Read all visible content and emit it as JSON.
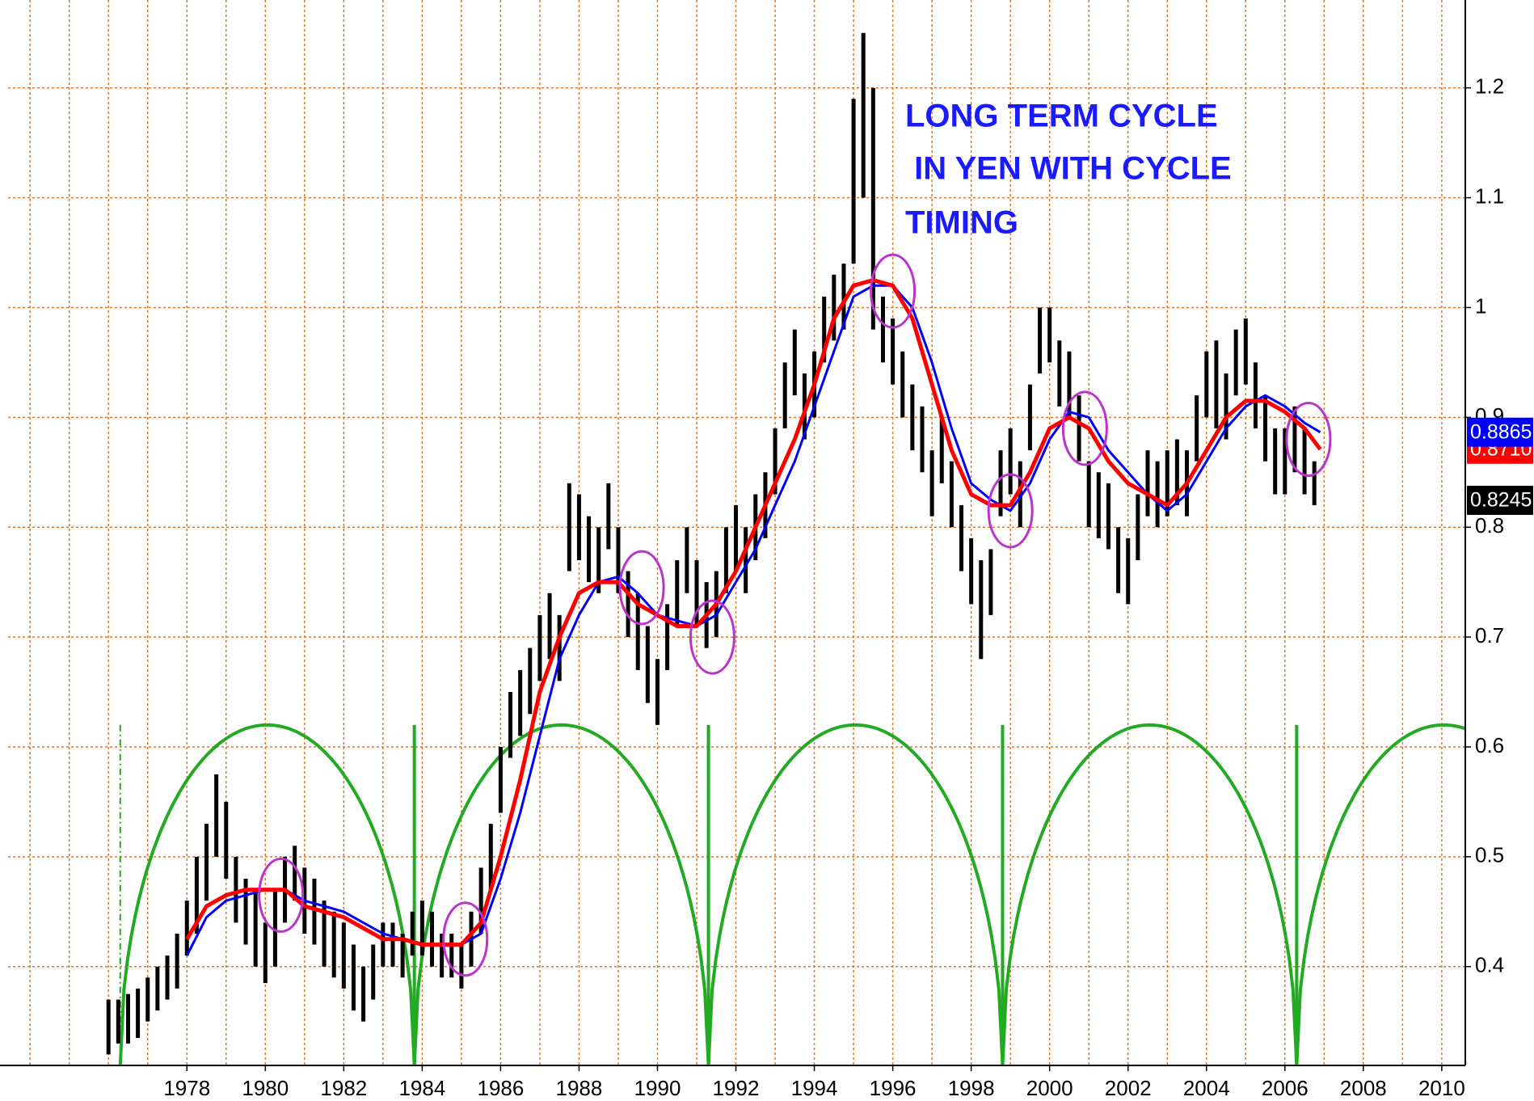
{
  "chart_data": {
    "type": "ohlc",
    "annotations": [
      "LONG TERM CYCLE",
      " IN YEN WITH CYCLE",
      "TIMING"
    ],
    "annotation_color": "#1a1aff",
    "xlim": [
      1973.44,
      2010.6
    ],
    "xticks": [
      1978,
      1980,
      1982,
      1984,
      1986,
      1988,
      1990,
      1992,
      1994,
      1996,
      1998,
      2000,
      2002,
      2004,
      2006,
      2008,
      2010
    ],
    "ylim": [
      0.31,
      1.28
    ],
    "yticks": [
      0.4,
      0.5,
      0.6,
      0.7,
      0.8,
      0.9,
      1,
      1.1,
      1.2
    ],
    "grid": true,
    "grid_color": "#d07a3a",
    "bars": {
      "color": "#000000",
      "x": [
        1976,
        1976.25,
        1976.5,
        1976.75,
        1977,
        1977.25,
        1977.5,
        1977.75,
        1978,
        1978.25,
        1978.5,
        1978.75,
        1979,
        1979.25,
        1979.5,
        1979.75,
        1980,
        1980.25,
        1980.5,
        1980.75,
        1981,
        1981.25,
        1981.5,
        1981.75,
        1982,
        1982.25,
        1982.5,
        1982.75,
        1983,
        1983.25,
        1983.5,
        1983.75,
        1984,
        1984.25,
        1984.5,
        1984.75,
        1985,
        1985.25,
        1985.5,
        1985.75,
        1986,
        1986.25,
        1986.5,
        1986.75,
        1987,
        1987.25,
        1987.5,
        1987.75,
        1988,
        1988.25,
        1988.5,
        1988.75,
        1989,
        1989.25,
        1989.5,
        1989.75,
        1990,
        1990.25,
        1990.5,
        1990.75,
        1991,
        1991.25,
        1991.5,
        1991.75,
        1992,
        1992.25,
        1992.5,
        1992.75,
        1993,
        1993.25,
        1993.5,
        1993.75,
        1994,
        1994.25,
        1994.5,
        1994.75,
        1995,
        1995.25,
        1995.5,
        1995.75,
        1996,
        1996.25,
        1996.5,
        1996.75,
        1997,
        1997.25,
        1997.5,
        1997.75,
        1998,
        1998.25,
        1998.5,
        1998.75,
        1999,
        1999.25,
        1999.5,
        1999.75,
        2000,
        2000.25,
        2000.5,
        2000.75,
        2001,
        2001.25,
        2001.5,
        2001.75,
        2002,
        2002.25,
        2002.5,
        2002.75,
        2003,
        2003.25,
        2003.5,
        2003.75,
        2004,
        2004.25,
        2004.5,
        2004.75,
        2005,
        2005.25,
        2005.5,
        2005.75,
        2006,
        2006.25,
        2006.5,
        2006.75
      ],
      "high": [
        0.37,
        0.37,
        0.375,
        0.38,
        0.39,
        0.4,
        0.41,
        0.43,
        0.46,
        0.5,
        0.53,
        0.575,
        0.55,
        0.5,
        0.48,
        0.47,
        0.44,
        0.47,
        0.5,
        0.51,
        0.49,
        0.48,
        0.46,
        0.45,
        0.44,
        0.42,
        0.4,
        0.42,
        0.44,
        0.44,
        0.43,
        0.45,
        0.46,
        0.45,
        0.43,
        0.43,
        0.42,
        0.45,
        0.49,
        0.53,
        0.6,
        0.65,
        0.67,
        0.69,
        0.72,
        0.74,
        0.72,
        0.84,
        0.83,
        0.81,
        0.8,
        0.84,
        0.8,
        0.76,
        0.74,
        0.71,
        0.68,
        0.73,
        0.77,
        0.8,
        0.77,
        0.75,
        0.76,
        0.8,
        0.82,
        0.8,
        0.83,
        0.85,
        0.89,
        0.95,
        0.98,
        0.94,
        0.96,
        1.01,
        1.03,
        1.04,
        1.19,
        1.25,
        1.2,
        1.01,
        0.99,
        0.96,
        0.93,
        0.91,
        0.87,
        0.9,
        0.86,
        0.82,
        0.79,
        0.77,
        0.78,
        0.87,
        0.89,
        0.86,
        0.93,
        1.0,
        1.0,
        0.97,
        0.96,
        0.92,
        0.86,
        0.85,
        0.84,
        0.8,
        0.79,
        0.83,
        0.87,
        0.86,
        0.87,
        0.88,
        0.87,
        0.92,
        0.96,
        0.97,
        0.94,
        0.98,
        0.99,
        0.95,
        0.92,
        0.89,
        0.89,
        0.91,
        0.89,
        0.86
      ],
      "low": [
        0.32,
        0.33,
        0.33,
        0.335,
        0.35,
        0.36,
        0.37,
        0.38,
        0.41,
        0.43,
        0.46,
        0.5,
        0.48,
        0.44,
        0.42,
        0.4,
        0.385,
        0.4,
        0.44,
        0.46,
        0.43,
        0.42,
        0.4,
        0.39,
        0.38,
        0.36,
        0.35,
        0.37,
        0.4,
        0.4,
        0.39,
        0.41,
        0.41,
        0.4,
        0.39,
        0.39,
        0.38,
        0.4,
        0.43,
        0.47,
        0.54,
        0.59,
        0.61,
        0.63,
        0.66,
        0.68,
        0.66,
        0.76,
        0.77,
        0.75,
        0.74,
        0.78,
        0.74,
        0.7,
        0.67,
        0.64,
        0.62,
        0.67,
        0.71,
        0.74,
        0.71,
        0.69,
        0.7,
        0.74,
        0.76,
        0.74,
        0.77,
        0.79,
        0.83,
        0.89,
        0.92,
        0.88,
        0.9,
        0.95,
        0.97,
        0.98,
        1.04,
        1.1,
        0.98,
        0.95,
        0.93,
        0.9,
        0.87,
        0.85,
        0.81,
        0.84,
        0.8,
        0.76,
        0.73,
        0.68,
        0.72,
        0.81,
        0.83,
        0.8,
        0.87,
        0.94,
        0.95,
        0.91,
        0.9,
        0.86,
        0.8,
        0.79,
        0.78,
        0.74,
        0.73,
        0.77,
        0.81,
        0.8,
        0.81,
        0.82,
        0.81,
        0.86,
        0.9,
        0.89,
        0.88,
        0.92,
        0.93,
        0.89,
        0.86,
        0.83,
        0.83,
        0.85,
        0.83,
        0.82
      ]
    },
    "ma_x": [
      1978,
      1978.5,
      1979,
      1979.5,
      1980,
      1980.5,
      1981,
      1981.5,
      1982,
      1982.5,
      1983,
      1983.5,
      1984,
      1984.5,
      1985,
      1985.5,
      1986,
      1986.5,
      1987,
      1987.5,
      1988,
      1988.5,
      1989,
      1989.5,
      1990,
      1990.5,
      1991,
      1991.5,
      1992,
      1992.5,
      1993,
      1993.5,
      1994,
      1994.5,
      1995,
      1995.5,
      1996,
      1996.5,
      1997,
      1997.5,
      1998,
      1998.5,
      1999,
      1999.5,
      2000,
      2000.5,
      2001,
      2001.5,
      2002,
      2002.5,
      2003,
      2003.5,
      2004,
      2004.5,
      2005,
      2005.5,
      2006,
      2006.5,
      2006.9
    ],
    "series": [
      {
        "color": "#0000ff",
        "values": [
          0.41,
          0.445,
          0.46,
          0.465,
          0.47,
          0.47,
          0.46,
          0.455,
          0.45,
          0.44,
          0.43,
          0.425,
          0.42,
          0.42,
          0.42,
          0.43,
          0.48,
          0.54,
          0.61,
          0.68,
          0.72,
          0.75,
          0.755,
          0.74,
          0.72,
          0.715,
          0.71,
          0.72,
          0.75,
          0.78,
          0.82,
          0.86,
          0.91,
          0.96,
          1.01,
          1.02,
          1.02,
          1.0,
          0.95,
          0.89,
          0.84,
          0.825,
          0.815,
          0.84,
          0.88,
          0.905,
          0.9,
          0.87,
          0.85,
          0.83,
          0.815,
          0.83,
          0.86,
          0.89,
          0.91,
          0.92,
          0.91,
          0.895,
          0.8865
        ]
      },
      {
        "color": "#ff0000",
        "values": [
          0.425,
          0.455,
          0.465,
          0.47,
          0.47,
          0.47,
          0.455,
          0.45,
          0.445,
          0.435,
          0.425,
          0.425,
          0.42,
          0.42,
          0.42,
          0.44,
          0.5,
          0.57,
          0.65,
          0.7,
          0.74,
          0.75,
          0.75,
          0.73,
          0.72,
          0.71,
          0.71,
          0.73,
          0.76,
          0.8,
          0.84,
          0.88,
          0.93,
          0.99,
          1.02,
          1.025,
          1.02,
          0.99,
          0.93,
          0.87,
          0.83,
          0.82,
          0.82,
          0.85,
          0.89,
          0.9,
          0.89,
          0.86,
          0.84,
          0.83,
          0.82,
          0.84,
          0.87,
          0.9,
          0.915,
          0.915,
          0.905,
          0.89,
          0.871
        ]
      }
    ],
    "last_values": [
      {
        "value": 0.871,
        "label": "0.8710",
        "color": "#ff0000"
      },
      {
        "value": 0.8865,
        "label": "0.8865",
        "color": "#0000ff"
      },
      {
        "value": 0.8245,
        "label": "0.8245",
        "color": "#000000"
      }
    ],
    "cycle": {
      "color": "#22aa22",
      "troughs": [
        1976.3,
        1983.8,
        1991.3,
        1998.8,
        2006.3
      ],
      "peak": 0.62
    },
    "circles": {
      "color": "#bb33cc",
      "x": [
        1980.4,
        1985.1,
        1989.6,
        1991.4,
        1996.0,
        1999.0,
        2000.9,
        2006.6
      ],
      "y": [
        0.465,
        0.425,
        0.745,
        0.7,
        1.015,
        0.815,
        0.89,
        0.88
      ]
    }
  }
}
